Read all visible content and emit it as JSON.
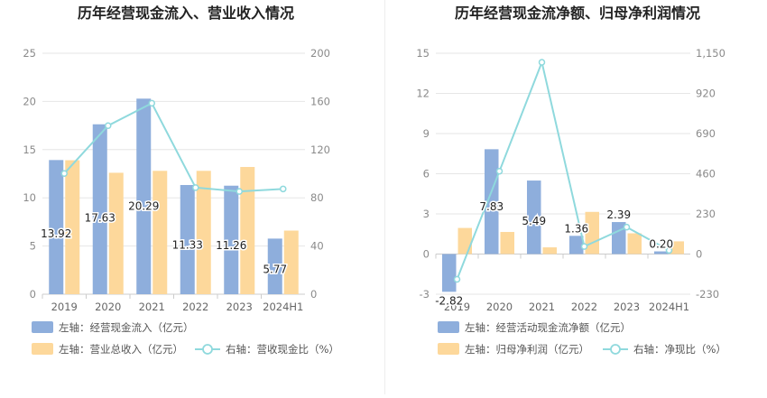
{
  "chart_data": [
    {
      "type": "bar",
      "title": "历年经营现金流入、营业收入情况",
      "categories": [
        "2019",
        "2020",
        "2021",
        "2022",
        "2023",
        "2024H1"
      ],
      "y_left": {
        "ticks": [
          "0",
          "5",
          "10",
          "15",
          "20",
          "25"
        ],
        "lim": [
          0,
          25
        ]
      },
      "y_right": {
        "ticks": [
          "0",
          "40",
          "80",
          "120",
          "160",
          "200"
        ],
        "lim": [
          0,
          200
        ]
      },
      "series": [
        {
          "name": "左轴：经营现金流入（亿元）",
          "type": "bar",
          "axis": "left",
          "color": "#8eaedc",
          "values": [
            13.92,
            17.63,
            20.29,
            11.33,
            11.26,
            5.77
          ],
          "labels": [
            "13.92",
            "17.63",
            "20.29",
            "11.33",
            "11.26",
            "5.77"
          ]
        },
        {
          "name": "左轴：营业总收入（亿元）",
          "type": "bar",
          "axis": "left",
          "color": "#fdd89b",
          "values": [
            13.9,
            12.6,
            12.8,
            12.8,
            13.2,
            6.6
          ]
        },
        {
          "name": "右轴：营收现金比（%）",
          "type": "line",
          "axis": "right",
          "color": "#8fd9dd",
          "values": [
            100.2,
            139.9,
            158.5,
            88.5,
            85.3,
            87.4
          ]
        }
      ],
      "grid": true
    },
    {
      "type": "bar",
      "title": "历年经营现金流净额、归母净利润情况",
      "categories": [
        "2019",
        "2020",
        "2021",
        "2022",
        "2023",
        "2024H1"
      ],
      "y_left": {
        "ticks": [
          "-3",
          "0",
          "3",
          "6",
          "9",
          "12",
          "15"
        ],
        "lim": [
          -3,
          15
        ]
      },
      "y_right": {
        "ticks": [
          "-230",
          "0",
          "230",
          "460",
          "690",
          "920",
          "1,150"
        ],
        "lim": [
          -230,
          1150
        ]
      },
      "series": [
        {
          "name": "左轴：经营活动现金流净额（亿元）",
          "type": "bar",
          "axis": "left",
          "color": "#8eaedc",
          "values": [
            -2.82,
            7.83,
            5.49,
            1.36,
            2.39,
            0.2
          ],
          "labels": [
            "-2.82",
            "7.83",
            "5.49",
            "1.36",
            "2.39",
            "0.20"
          ]
        },
        {
          "name": "左轴：归母净利润（亿元）",
          "type": "bar",
          "axis": "left",
          "color": "#fdd89b",
          "values": [
            1.95,
            1.65,
            0.5,
            3.15,
            1.55,
            0.95
          ]
        },
        {
          "name": "右轴：净现比（%）",
          "type": "line",
          "axis": "right",
          "color": "#8fd9dd",
          "values": [
            -144.6,
            474.5,
            1098.0,
            43.2,
            154.2,
            21.1
          ]
        }
      ],
      "grid": true
    }
  ]
}
